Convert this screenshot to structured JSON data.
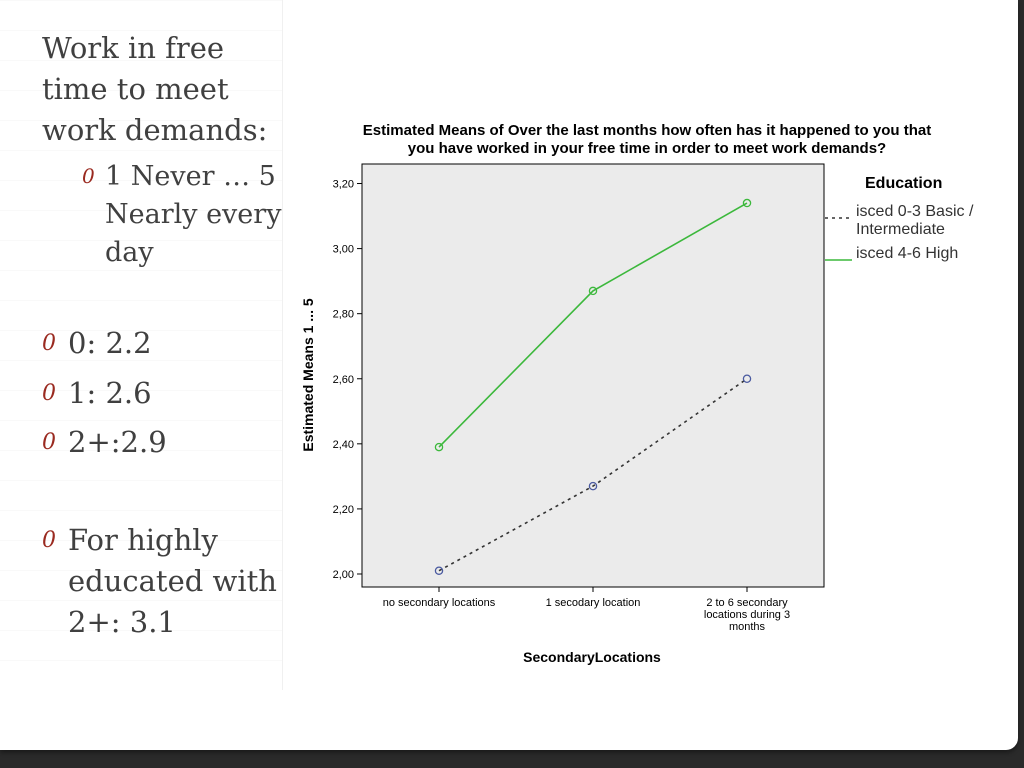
{
  "slide": {
    "heading": "Work in free time to meet work demands:",
    "scale_note": "1 Never … 5 Nearly every day",
    "bullet_mark": "0",
    "bullets": [
      {
        "text": "0: 2.2"
      },
      {
        "text": "1: 2.6"
      },
      {
        "text": "2+:2.9"
      },
      {
        "text": "For highly educated with 2+: 3.1"
      }
    ]
  },
  "chart_data": {
    "type": "line",
    "title": "Estimated Means of Over the last months how often has it happened to you that you have worked in your free time in order to meet work demands?",
    "title_lines": [
      "Estimated Means of Over the last months how often has it happened to you that",
      "you have worked in your free time in order to meet work demands?"
    ],
    "xlabel": "SecondaryLocations",
    "ylabel": "Estimated Means 1 ... 5",
    "categories": [
      [
        "no secondary locations"
      ],
      [
        "1 secodary location"
      ],
      [
        "2 to 6 secondary",
        "locations during 3",
        "months"
      ]
    ],
    "ylim": [
      1.96,
      3.26
    ],
    "yticks": [
      "2,00",
      "2,20",
      "2,40",
      "2,60",
      "2,80",
      "3,00",
      "3,20"
    ],
    "ytick_values": [
      2.0,
      2.2,
      2.4,
      2.6,
      2.8,
      3.0,
      3.2
    ],
    "legend_title": "Education",
    "legend_position": "right",
    "grid": false,
    "plot_background": "#ebebeb",
    "series": [
      {
        "name": "isced 0-3 Basic / Intermediate",
        "name_lines": [
          "isced 0-3 Basic /",
          "Intermediate"
        ],
        "values": [
          2.01,
          2.27,
          2.6
        ],
        "color": "#333333",
        "dash": true,
        "marker_color": "#4a5aa0"
      },
      {
        "name": "isced 4-6 High",
        "name_lines": [
          "isced 4-6 High"
        ],
        "values": [
          2.39,
          2.87,
          3.14
        ],
        "color": "#3cb83c",
        "dash": false,
        "marker_color": "#3cb83c"
      }
    ]
  }
}
